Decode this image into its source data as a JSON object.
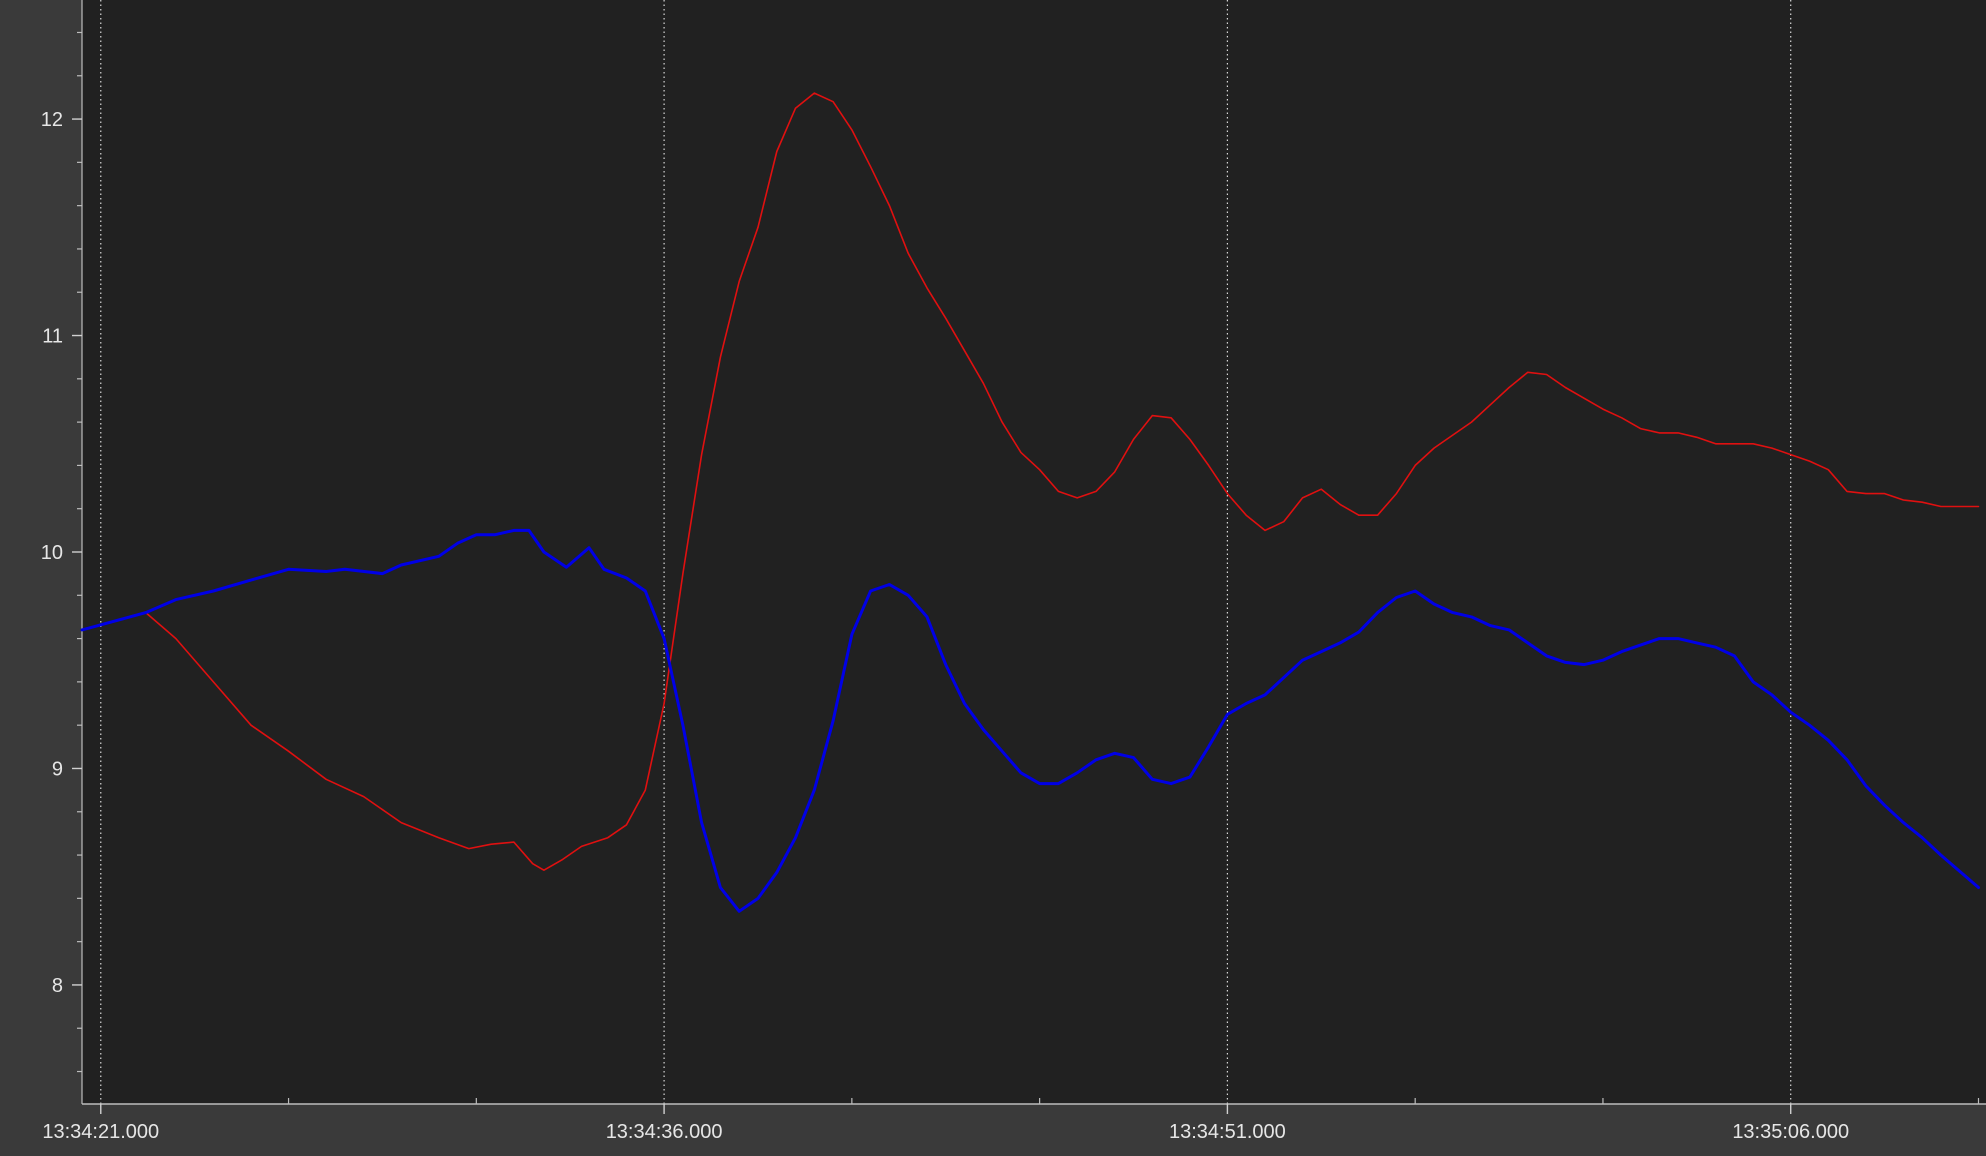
{
  "chart_data": {
    "type": "line",
    "x_axis": {
      "unit": "seconds after 13:34:21.000",
      "range": [
        -0.5,
        50.2
      ],
      "major_ticks": [
        {
          "t": 0,
          "label": "13:34:21.000"
        },
        {
          "t": 15,
          "label": "13:34:36.000"
        },
        {
          "t": 30,
          "label": "13:34:51.000"
        },
        {
          "t": 45,
          "label": "13:35:06.000"
        }
      ],
      "minor_ticks": [
        5,
        10,
        20,
        25,
        35,
        40,
        50
      ]
    },
    "y_axis": {
      "range": [
        7.45,
        12.55
      ],
      "major_ticks": [
        8,
        9,
        10,
        11,
        12
      ],
      "minor_step": 0.2
    },
    "grid": {
      "vertical_dotted": true,
      "horizontal": false
    },
    "series": [
      {
        "color": "#e01010",
        "width": 1.6,
        "points": [
          [
            -0.5,
            9.64
          ],
          [
            1.2,
            9.72
          ],
          [
            2,
            9.6
          ],
          [
            3,
            9.4
          ],
          [
            4,
            9.2
          ],
          [
            5,
            9.08
          ],
          [
            6,
            8.95
          ],
          [
            7,
            8.87
          ],
          [
            8,
            8.75
          ],
          [
            9,
            8.68
          ],
          [
            9.8,
            8.63
          ],
          [
            10.4,
            8.65
          ],
          [
            11,
            8.66
          ],
          [
            11.5,
            8.56
          ],
          [
            11.8,
            8.53
          ],
          [
            12.3,
            8.58
          ],
          [
            12.8,
            8.64
          ],
          [
            13.5,
            8.68
          ],
          [
            14,
            8.74
          ],
          [
            14.5,
            8.9
          ],
          [
            15,
            9.3
          ],
          [
            15.5,
            9.9
          ],
          [
            16,
            10.45
          ],
          [
            16.5,
            10.9
          ],
          [
            17,
            11.25
          ],
          [
            17.5,
            11.5
          ],
          [
            18,
            11.85
          ],
          [
            18.5,
            12.05
          ],
          [
            19,
            12.12
          ],
          [
            19.5,
            12.08
          ],
          [
            20,
            11.95
          ],
          [
            20.5,
            11.78
          ],
          [
            21,
            11.6
          ],
          [
            21.5,
            11.38
          ],
          [
            22,
            11.22
          ],
          [
            22.5,
            11.08
          ],
          [
            23,
            10.93
          ],
          [
            23.5,
            10.78
          ],
          [
            24,
            10.6
          ],
          [
            24.5,
            10.46
          ],
          [
            25,
            10.38
          ],
          [
            25.5,
            10.28
          ],
          [
            26,
            10.25
          ],
          [
            26.5,
            10.28
          ],
          [
            27,
            10.37
          ],
          [
            27.5,
            10.52
          ],
          [
            28,
            10.63
          ],
          [
            28.5,
            10.62
          ],
          [
            29,
            10.52
          ],
          [
            29.5,
            10.4
          ],
          [
            30,
            10.27
          ],
          [
            30.5,
            10.17
          ],
          [
            31,
            10.1
          ],
          [
            31.5,
            10.14
          ],
          [
            32,
            10.25
          ],
          [
            32.5,
            10.29
          ],
          [
            33,
            10.22
          ],
          [
            33.5,
            10.17
          ],
          [
            34,
            10.17
          ],
          [
            34.5,
            10.27
          ],
          [
            35,
            10.4
          ],
          [
            35.5,
            10.48
          ],
          [
            36,
            10.54
          ],
          [
            36.5,
            10.6
          ],
          [
            37,
            10.68
          ],
          [
            37.5,
            10.76
          ],
          [
            38,
            10.83
          ],
          [
            38.5,
            10.82
          ],
          [
            39,
            10.76
          ],
          [
            39.5,
            10.71
          ],
          [
            40,
            10.66
          ],
          [
            40.5,
            10.62
          ],
          [
            41,
            10.57
          ],
          [
            41.5,
            10.55
          ],
          [
            42,
            10.55
          ],
          [
            42.5,
            10.53
          ],
          [
            43,
            10.5
          ],
          [
            43.5,
            10.5
          ],
          [
            44,
            10.5
          ],
          [
            44.5,
            10.48
          ],
          [
            45,
            10.45
          ],
          [
            45.5,
            10.42
          ],
          [
            46,
            10.38
          ],
          [
            46.5,
            10.28
          ],
          [
            47,
            10.27
          ],
          [
            47.5,
            10.27
          ],
          [
            48,
            10.24
          ],
          [
            48.5,
            10.23
          ],
          [
            49,
            10.21
          ],
          [
            50,
            10.21
          ]
        ]
      },
      {
        "color": "#0000e6",
        "width": 3,
        "points": [
          [
            -0.5,
            9.64
          ],
          [
            1.2,
            9.72
          ],
          [
            2,
            9.78
          ],
          [
            3,
            9.82
          ],
          [
            4,
            9.87
          ],
          [
            5,
            9.92
          ],
          [
            6,
            9.91
          ],
          [
            6.5,
            9.92
          ],
          [
            7.5,
            9.9
          ],
          [
            8,
            9.94
          ],
          [
            9,
            9.98
          ],
          [
            9.5,
            10.04
          ],
          [
            10,
            10.08
          ],
          [
            10.5,
            10.08
          ],
          [
            11,
            10.1
          ],
          [
            11.4,
            10.1
          ],
          [
            11.8,
            10.0
          ],
          [
            12.4,
            9.93
          ],
          [
            13,
            10.02
          ],
          [
            13.4,
            9.92
          ],
          [
            14,
            9.88
          ],
          [
            14.5,
            9.82
          ],
          [
            15,
            9.6
          ],
          [
            15.5,
            9.2
          ],
          [
            16,
            8.75
          ],
          [
            16.5,
            8.45
          ],
          [
            17,
            8.34
          ],
          [
            17.5,
            8.4
          ],
          [
            18,
            8.52
          ],
          [
            18.5,
            8.68
          ],
          [
            19,
            8.9
          ],
          [
            19.5,
            9.22
          ],
          [
            20,
            9.62
          ],
          [
            20.5,
            9.82
          ],
          [
            21,
            9.85
          ],
          [
            21.5,
            9.8
          ],
          [
            22,
            9.7
          ],
          [
            22.5,
            9.48
          ],
          [
            23,
            9.3
          ],
          [
            23.5,
            9.18
          ],
          [
            24,
            9.08
          ],
          [
            24.5,
            8.98
          ],
          [
            25,
            8.93
          ],
          [
            25.5,
            8.93
          ],
          [
            26,
            8.98
          ],
          [
            26.5,
            9.04
          ],
          [
            27,
            9.07
          ],
          [
            27.5,
            9.05
          ],
          [
            28,
            8.95
          ],
          [
            28.5,
            8.93
          ],
          [
            29,
            8.96
          ],
          [
            29.5,
            9.1
          ],
          [
            30,
            9.25
          ],
          [
            30.5,
            9.3
          ],
          [
            31,
            9.34
          ],
          [
            31.5,
            9.42
          ],
          [
            32,
            9.5
          ],
          [
            32.5,
            9.54
          ],
          [
            33,
            9.58
          ],
          [
            33.5,
            9.63
          ],
          [
            34,
            9.72
          ],
          [
            34.5,
            9.79
          ],
          [
            35,
            9.82
          ],
          [
            35.5,
            9.76
          ],
          [
            36,
            9.72
          ],
          [
            36.5,
            9.7
          ],
          [
            37,
            9.66
          ],
          [
            37.5,
            9.64
          ],
          [
            38,
            9.58
          ],
          [
            38.5,
            9.52
          ],
          [
            39,
            9.49
          ],
          [
            39.5,
            9.48
          ],
          [
            40,
            9.5
          ],
          [
            40.5,
            9.54
          ],
          [
            41,
            9.57
          ],
          [
            41.5,
            9.6
          ],
          [
            42,
            9.6
          ],
          [
            42.5,
            9.58
          ],
          [
            43,
            9.56
          ],
          [
            43.5,
            9.52
          ],
          [
            44,
            9.4
          ],
          [
            44.5,
            9.34
          ],
          [
            45,
            9.26
          ],
          [
            45.5,
            9.2
          ],
          [
            46,
            9.13
          ],
          [
            46.5,
            9.04
          ],
          [
            47,
            8.92
          ],
          [
            47.5,
            8.83
          ],
          [
            48,
            8.75
          ],
          [
            48.5,
            8.68
          ],
          [
            49,
            8.6
          ],
          [
            50,
            8.45
          ]
        ]
      }
    ]
  }
}
